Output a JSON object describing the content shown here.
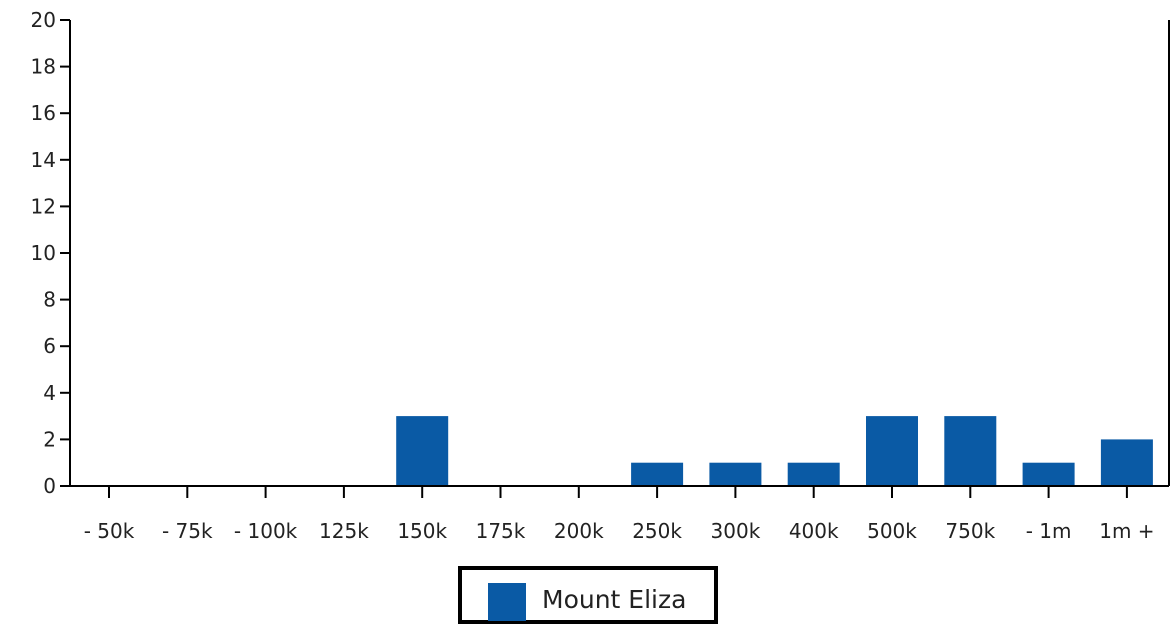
{
  "chart_data": {
    "type": "bar",
    "categories": [
      "- 50k",
      "- 75k",
      "- 100k",
      "125k",
      "150k",
      "175k",
      "200k",
      "250k",
      "300k",
      "400k",
      "500k",
      "750k",
      "- 1m",
      "1m +"
    ],
    "series": [
      {
        "name": "Mount Eliza",
        "color": "#0a5aa5",
        "values": [
          0,
          0,
          0,
          0,
          3,
          0,
          0,
          1,
          1,
          1,
          3,
          3,
          1,
          2
        ]
      }
    ],
    "ylim": [
      0,
      20
    ],
    "yticks": [
      "0",
      "2",
      "4",
      "6",
      "8",
      "10",
      "12",
      "14",
      "16",
      "18",
      "20"
    ],
    "grid": false,
    "legend_position": "bottom-center"
  }
}
